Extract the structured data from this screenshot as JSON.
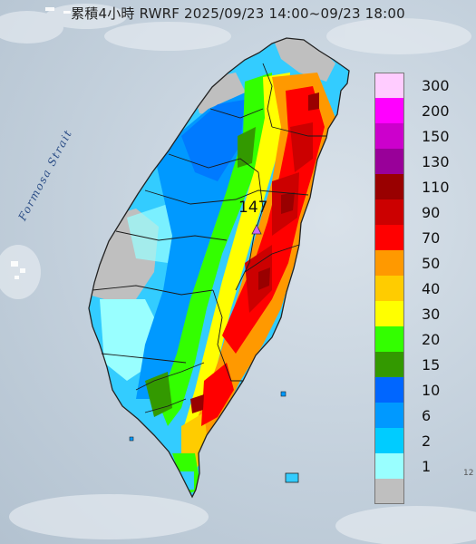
{
  "header": {
    "title": "累積4小時 RWRF 2025/09/23 14:00~09/23 18:00"
  },
  "map": {
    "strait_label": "Formosa Strait",
    "max_value_label": "147",
    "edge_label": "12"
  },
  "legend": {
    "levels": [
      {
        "label": "300",
        "color": "#ffccff"
      },
      {
        "label": "200",
        "color": "#ff00ff"
      },
      {
        "label": "150",
        "color": "#cc00cc"
      },
      {
        "label": "130",
        "color": "#990099"
      },
      {
        "label": "110",
        "color": "#990000"
      },
      {
        "label": "90",
        "color": "#cc0000"
      },
      {
        "label": "70",
        "color": "#ff0000"
      },
      {
        "label": "50",
        "color": "#ff9900"
      },
      {
        "label": "40",
        "color": "#ffcc00"
      },
      {
        "label": "30",
        "color": "#ffff00"
      },
      {
        "label": "20",
        "color": "#33ff00"
      },
      {
        "label": "15",
        "color": "#339900"
      },
      {
        "label": "10",
        "color": "#0066ff"
      },
      {
        "label": "6",
        "color": "#0099ff"
      },
      {
        "label": "2",
        "color": "#00ccff"
      },
      {
        "label": "1",
        "color": "#99ffff"
      },
      {
        "label": "",
        "color": "#bfbfbf"
      }
    ]
  }
}
